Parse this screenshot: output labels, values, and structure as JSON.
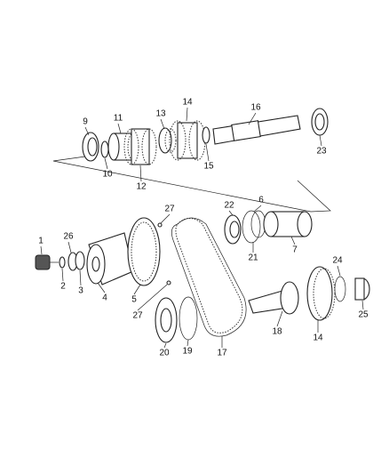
{
  "callouts": [
    "9",
    "11",
    "13",
    "14",
    "16",
    "23",
    "10",
    "12",
    "15",
    "27",
    "22",
    "6",
    "1",
    "26",
    "2",
    "3",
    "4",
    "5",
    "21",
    "7",
    "24",
    "25",
    "27",
    "20",
    "19",
    "17",
    "18",
    "14"
  ]
}
